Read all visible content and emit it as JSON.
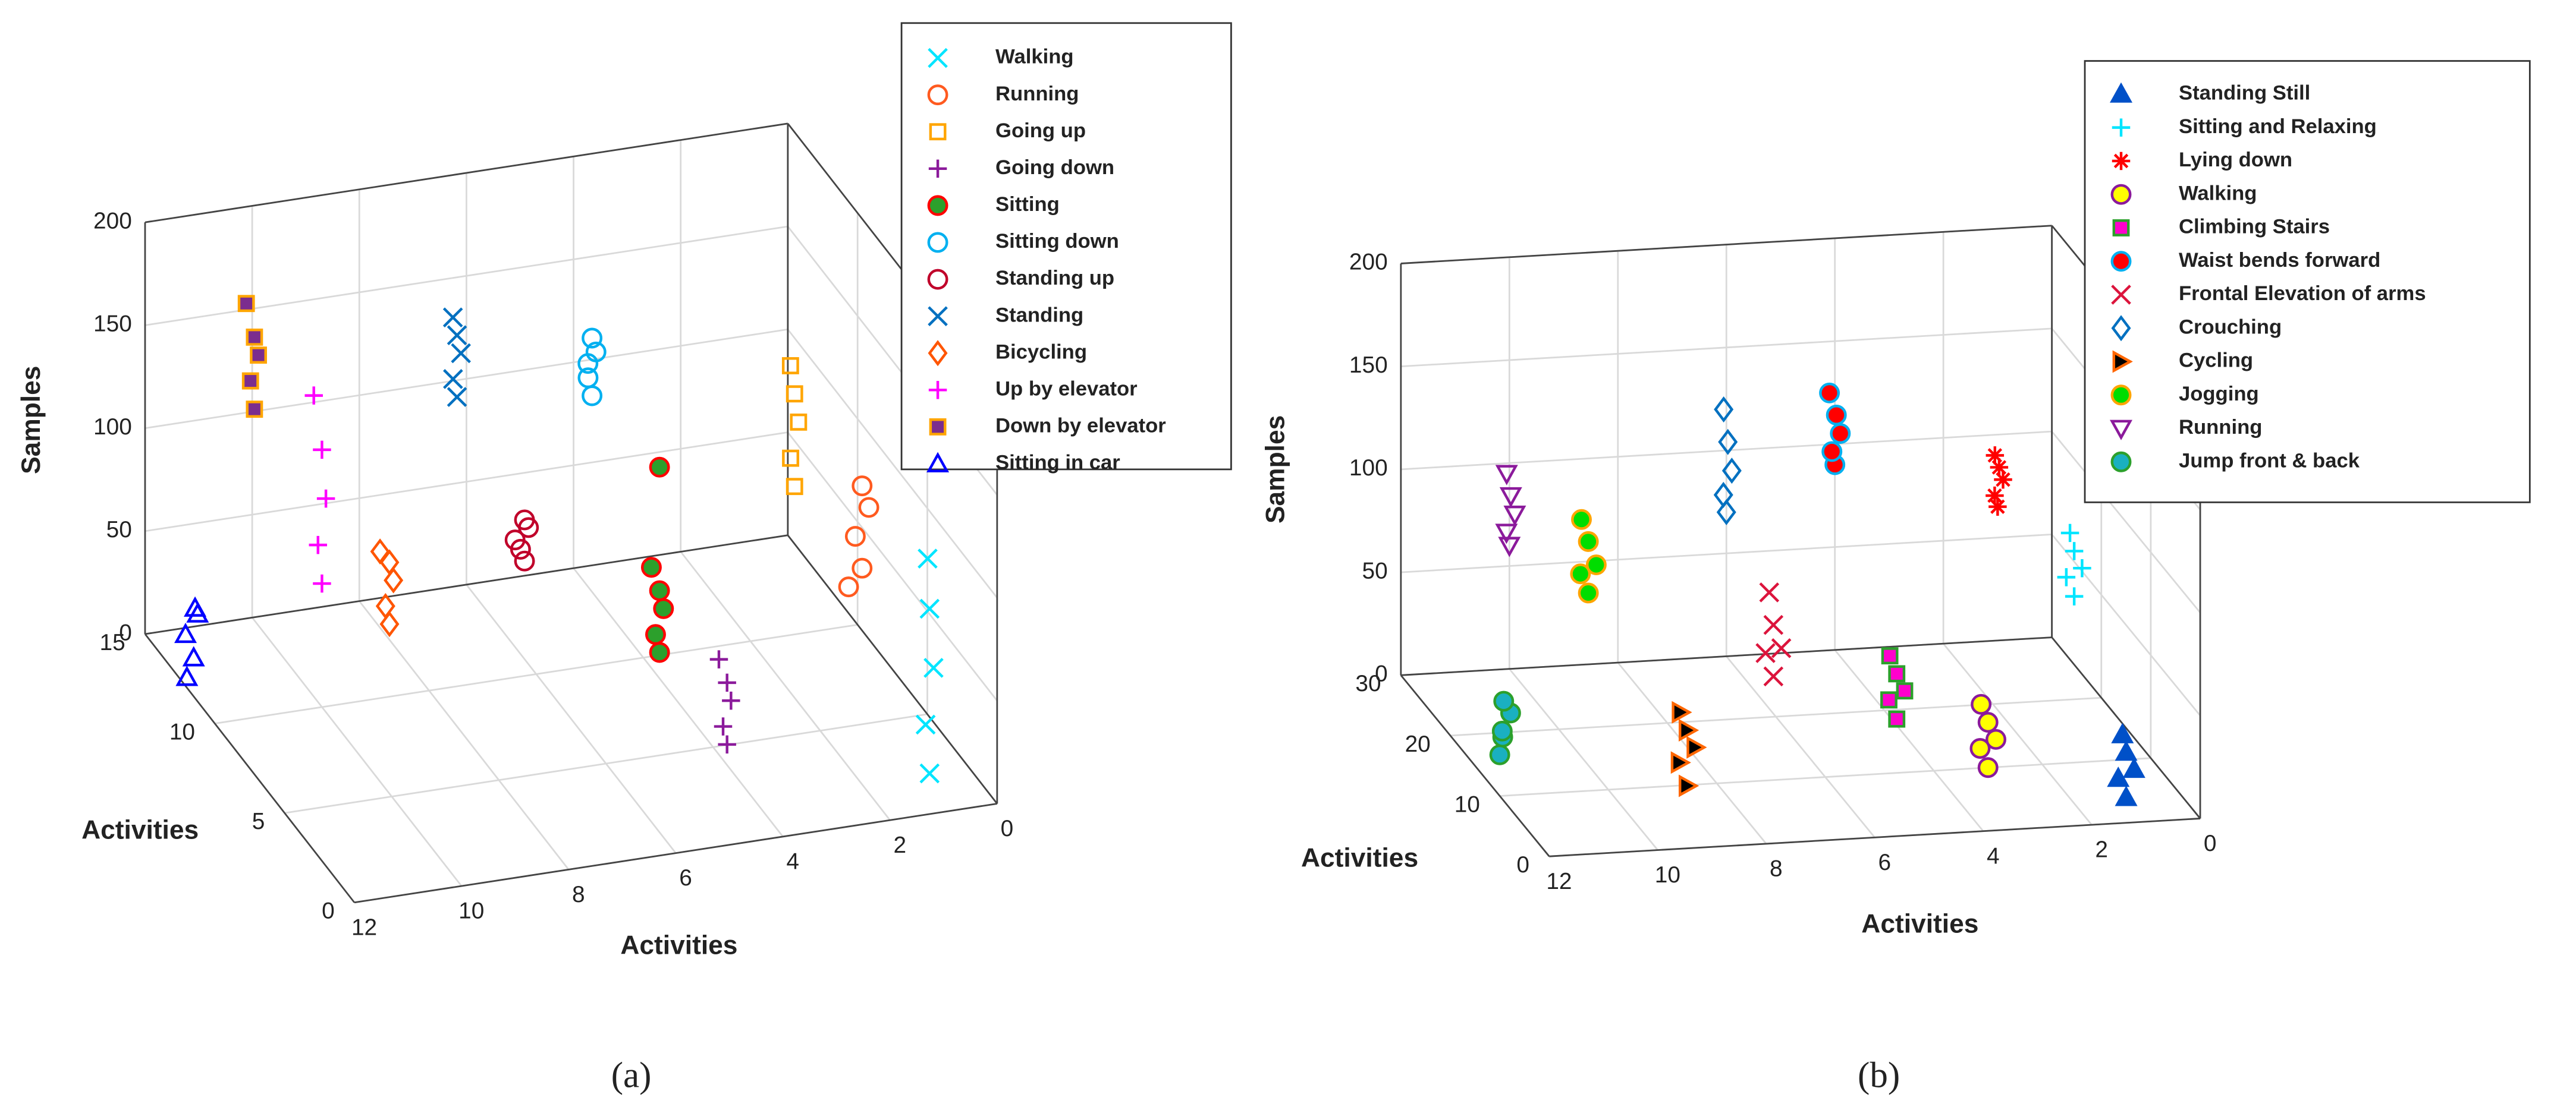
{
  "chart_data": [
    {
      "type": "scatter3d",
      "label": "(a)",
      "xlabel": "Activities",
      "ylabel": "Activities",
      "zlabel": "Samples",
      "xlim": [
        0,
        12
      ],
      "ylim": [
        0,
        15
      ],
      "zlim": [
        0,
        200
      ],
      "x_reversed": true,
      "grid": true,
      "xticks": [
        0,
        2,
        4,
        6,
        8,
        10,
        12
      ],
      "yticks": [
        0,
        5,
        10,
        15
      ],
      "zticks": [
        0,
        50,
        100,
        150,
        200
      ],
      "series": [
        {
          "name": "Walking",
          "color": "#00e5ff",
          "marker": "x",
          "x": [
            1,
            1.1,
            0.9,
            1,
            1.05
          ],
          "y": [
            1,
            0.9,
            1.1,
            1,
            0.95
          ],
          "z": [
            10,
            35,
            60,
            90,
            115
          ]
        },
        {
          "name": "Running",
          "color": "#ff5a1f",
          "marker": "o",
          "x": [
            2,
            2.1,
            1.9,
            2,
            2.2
          ],
          "y": [
            2,
            2.1,
            1.9,
            2,
            2.2
          ],
          "z": [
            105,
            120,
            135,
            145,
            95
          ]
        },
        {
          "name": "Going up",
          "color": "#ffa500",
          "marker": "s",
          "x": [
            3,
            3.1,
            2.9,
            3,
            3.05
          ],
          "y": [
            3,
            2.9,
            3.1,
            3,
            3.1
          ],
          "z": [
            140,
            155,
            170,
            185,
            198
          ]
        },
        {
          "name": "Going down",
          "color": "#8b1a9b",
          "marker": "+",
          "x": [
            4,
            4.1,
            3.9,
            4,
            4.1
          ],
          "y": [
            4,
            3.9,
            4.1,
            4,
            4.2
          ],
          "z": [
            10,
            20,
            30,
            40,
            50
          ]
        },
        {
          "name": "Sitting",
          "color": "#2ca02c",
          "edgecolor": "#ff0000",
          "marker": "filled-o",
          "x": [
            5,
            5.1,
            4.9,
            5,
            5.1,
            5
          ],
          "y": [
            5,
            4.9,
            5.1,
            5,
            5.2,
            5
          ],
          "z": [
            50,
            60,
            70,
            80,
            90,
            140
          ]
        },
        {
          "name": "Sitting down",
          "color": "#00b0f0",
          "marker": "o",
          "x": [
            6,
            6.1,
            5.9,
            6,
            6.05
          ],
          "y": [
            6,
            5.9,
            6.1,
            6,
            6.1
          ],
          "z": [
            170,
            180,
            190,
            198,
            185
          ]
        },
        {
          "name": "Standing up",
          "color": "#c0002a",
          "marker": "o",
          "x": [
            7,
            7.1,
            6.9,
            7,
            7.15
          ],
          "y": [
            7,
            6.9,
            7.1,
            7,
            7.1
          ],
          "z": [
            85,
            92,
            100,
            105,
            95
          ]
        },
        {
          "name": "Standing",
          "color": "#0070c0",
          "marker": "x",
          "x": [
            8,
            8.1,
            7.9,
            8,
            8.05
          ],
          "y": [
            8,
            7.9,
            8.1,
            8,
            8.1
          ],
          "z": [
            160,
            170,
            180,
            190,
            198
          ]
        },
        {
          "name": "Bicycling",
          "color": "#ff5500",
          "marker": "d",
          "x": [
            9,
            9.1,
            8.9,
            9,
            9.15
          ],
          "y": [
            9,
            8.9,
            9.1,
            9,
            9.1
          ],
          "z": [
            45,
            55,
            65,
            75,
            80
          ]
        },
        {
          "name": "Up by elevator",
          "color": "#ff00ff",
          "marker": "+",
          "x": [
            10,
            10.1,
            9.9,
            10,
            10.1
          ],
          "y": [
            10,
            9.9,
            10.1,
            10,
            10.2
          ],
          "z": [
            60,
            80,
            100,
            125,
            150
          ]
        },
        {
          "name": "Down by elevator",
          "color": "#7b2d8e",
          "edgecolor": "#ffa500",
          "marker": "filled-s",
          "x": [
            11,
            11.1,
            10.9,
            11,
            11.1
          ],
          "y": [
            11,
            10.9,
            11.1,
            11,
            11.2
          ],
          "z": [
            140,
            155,
            165,
            175,
            190
          ]
        },
        {
          "name": "Sitting in car",
          "color": "#0000ff",
          "marker": "^",
          "x": [
            12,
            11.9,
            12,
            11.8,
            11.9
          ],
          "y": [
            12,
            11.9,
            12.1,
            12,
            11.8
          ],
          "z": [
            5,
            15,
            25,
            35,
            40
          ]
        }
      ]
    },
    {
      "type": "scatter3d",
      "label": "(b)",
      "xlabel": "Activities",
      "ylabel": "Activities",
      "zlabel": "Samples",
      "xlim": [
        0,
        12
      ],
      "ylim": [
        0,
        30
      ],
      "zlim": [
        0,
        200
      ],
      "x_reversed": true,
      "grid": true,
      "xticks": [
        0,
        2,
        4,
        6,
        8,
        10,
        12
      ],
      "yticks": [
        0,
        10,
        20,
        30
      ],
      "zticks": [
        0,
        50,
        100,
        150,
        200
      ],
      "series": [
        {
          "name": "Standing Still",
          "color": "#0050c8",
          "marker": "filled-^",
          "x": [
            1,
            1.1,
            0.9,
            1,
            1.05
          ],
          "y": [
            4,
            4.5,
            3.5,
            4,
            4.2
          ],
          "z": [
            0,
            8,
            15,
            22,
            30
          ]
        },
        {
          "name": "Sitting and Relaxing",
          "color": "#00e5ff",
          "marker": "+",
          "x": [
            0.5,
            0.6,
            0.4,
            0.5,
            0.55
          ],
          "y": [
            20,
            20.5,
            19.5,
            20,
            20.3
          ],
          "z": [
            50,
            58,
            65,
            72,
            80
          ]
        },
        {
          "name": "Lying down",
          "color": "#ff0000",
          "marker": "*",
          "x": [
            1,
            1.1,
            0.9,
            1,
            1.05
          ],
          "y": [
            30,
            29.5,
            30,
            29.7,
            30
          ],
          "z": [
            65,
            72,
            78,
            85,
            90
          ]
        },
        {
          "name": "Walking",
          "color": "#ffff00",
          "edgecolor": "#8b1a9b",
          "marker": "filled-o",
          "x": [
            3,
            3.1,
            2.9,
            3,
            3.1
          ],
          "y": [
            10,
            10.5,
            9.5,
            10,
            10.3
          ],
          "z": [
            0,
            8,
            15,
            22,
            30
          ]
        },
        {
          "name": "Climbing Stairs",
          "color": "#ff00cc",
          "edgecolor": "#2ca02c",
          "marker": "filled-s",
          "x": [
            4.5,
            4.6,
            4.4,
            4.5,
            4.6
          ],
          "y": [
            12,
            12.5,
            11.5,
            12,
            12.3
          ],
          "z": [
            20,
            28,
            35,
            42,
            50
          ]
        },
        {
          "name": "Waist bends forward",
          "color": "#ff0000",
          "edgecolor": "#00b0f0",
          "marker": "filled-o",
          "x": [
            4,
            4.1,
            3.9,
            4,
            4.1
          ],
          "y": [
            30,
            29.5,
            30,
            29.7,
            30
          ],
          "z": [
            90,
            98,
            105,
            115,
            125
          ]
        },
        {
          "name": "Frontal Elevation of arms",
          "color": "#dc143c",
          "marker": "x",
          "x": [
            6.5,
            6.6,
            6.4,
            6.5,
            6.55
          ],
          "y": [
            15,
            15.5,
            14.5,
            15,
            15.3
          ],
          "z": [
            35,
            45,
            50,
            60,
            75
          ]
        },
        {
          "name": "Crouching",
          "color": "#0070c0",
          "marker": "d",
          "x": [
            6,
            6.1,
            5.9,
            6,
            6.05
          ],
          "y": [
            30,
            29.5,
            30,
            29.7,
            30
          ],
          "z": [
            70,
            80,
            90,
            105,
            120
          ]
        },
        {
          "name": "Cycling",
          "color": "#000000",
          "edgecolor": "#ff6600",
          "marker": "filled->",
          "x": [
            9,
            9.1,
            8.9,
            9,
            9.1
          ],
          "y": [
            5,
            5.5,
            4.5,
            5,
            5.3
          ],
          "z": [
            15,
            25,
            35,
            42,
            50
          ]
        },
        {
          "name": "Jogging",
          "color": "#00dd00",
          "edgecolor": "#ffa500",
          "marker": "filled-o",
          "x": [
            9,
            9.1,
            8.9,
            9,
            9.1
          ],
          "y": [
            25,
            25.5,
            24.5,
            25,
            25.3
          ],
          "z": [
            50,
            58,
            65,
            75,
            85
          ]
        },
        {
          "name": "Running",
          "color": "#8b1a9b",
          "marker": "v",
          "x": [
            10,
            10.1,
            9.9,
            10,
            10.05
          ],
          "y": [
            30,
            29.5,
            30,
            29.7,
            30
          ],
          "z": [
            60,
            68,
            75,
            85,
            95
          ]
        },
        {
          "name": "Jump front & back",
          "color": "#1ab0c0",
          "edgecolor": "#2ca02c",
          "marker": "filled-o",
          "x": [
            12,
            11.9,
            12,
            11.8,
            11.9
          ],
          "y": [
            10,
            10.5,
            9.5,
            10,
            10.3
          ],
          "z": [
            20,
            27,
            33,
            40,
            45
          ]
        }
      ]
    }
  ]
}
